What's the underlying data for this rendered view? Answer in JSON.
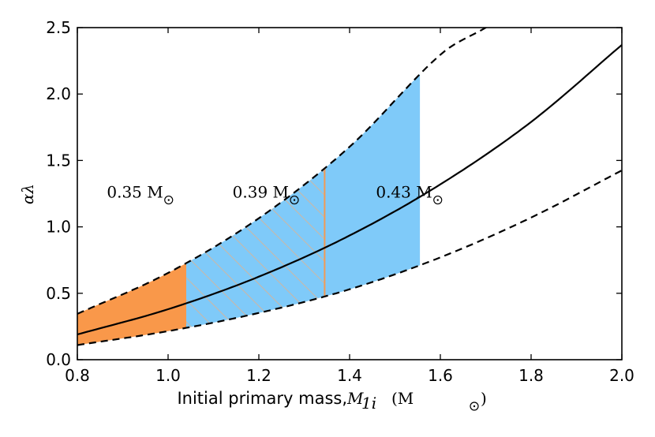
{
  "chart_data": {
    "type": "line",
    "xlabel_text": "Initial primary mass, ",
    "xlabel_symbol": "M",
    "xlabel_subscript": "1i",
    "xlabel_unit": "(M",
    "xlabel_unit_close": ")",
    "ylabel": "αλ",
    "xlim": [
      0.8,
      2.0
    ],
    "ylim": [
      0.0,
      2.5
    ],
    "x_ticks": [
      "0.8",
      "1.0",
      "1.2",
      "1.4",
      "1.6",
      "1.8",
      "2.0"
    ],
    "y_ticks": [
      "0.0",
      "0.5",
      "1.0",
      "1.5",
      "2.0",
      "2.5"
    ],
    "series": [
      {
        "name": "upper bound (dashed)",
        "style": "dashed",
        "x": [
          0.8,
          1.0,
          1.2,
          1.4,
          1.6,
          1.7
        ],
        "y": [
          0.345,
          0.653,
          1.065,
          1.603,
          2.296,
          2.5
        ]
      },
      {
        "name": "central relation (solid)",
        "style": "solid",
        "x": [
          0.8,
          1.0,
          1.2,
          1.4,
          1.6,
          1.8,
          2.0
        ],
        "y": [
          0.19,
          0.38,
          0.625,
          0.935,
          1.32,
          1.79,
          2.37
        ]
      },
      {
        "name": "lower bound (dashed)",
        "style": "dashed",
        "x": [
          0.8,
          1.0,
          1.2,
          1.4,
          1.6,
          1.8,
          2.0
        ],
        "y": [
          0.11,
          0.215,
          0.352,
          0.53,
          0.77,
          1.07,
          1.425
        ]
      }
    ],
    "regions": [
      {
        "name": "orange",
        "x_range": [
          0.8,
          1.04
        ],
        "color": "#f9984a"
      },
      {
        "name": "blue",
        "x_range": [
          1.04,
          1.555
        ],
        "color": "#7fcaf9"
      },
      {
        "name": "hatched",
        "x_range": [
          1.04,
          1.345
        ],
        "color": "#c9b8a8"
      }
    ],
    "divider_x": 1.345,
    "annotations": [
      {
        "text": "0.35 M",
        "x": 0.865,
        "y": 1.22
      },
      {
        "text": "0.39 M",
        "x": 1.142,
        "y": 1.22
      },
      {
        "text": "0.43 M",
        "x": 1.458,
        "y": 1.22
      }
    ],
    "colors": {
      "orange": "#f9984a",
      "blue": "#7fcaf9",
      "divider": "#f29a55",
      "hatch": "#c9b8a8",
      "line": "#000000"
    }
  }
}
